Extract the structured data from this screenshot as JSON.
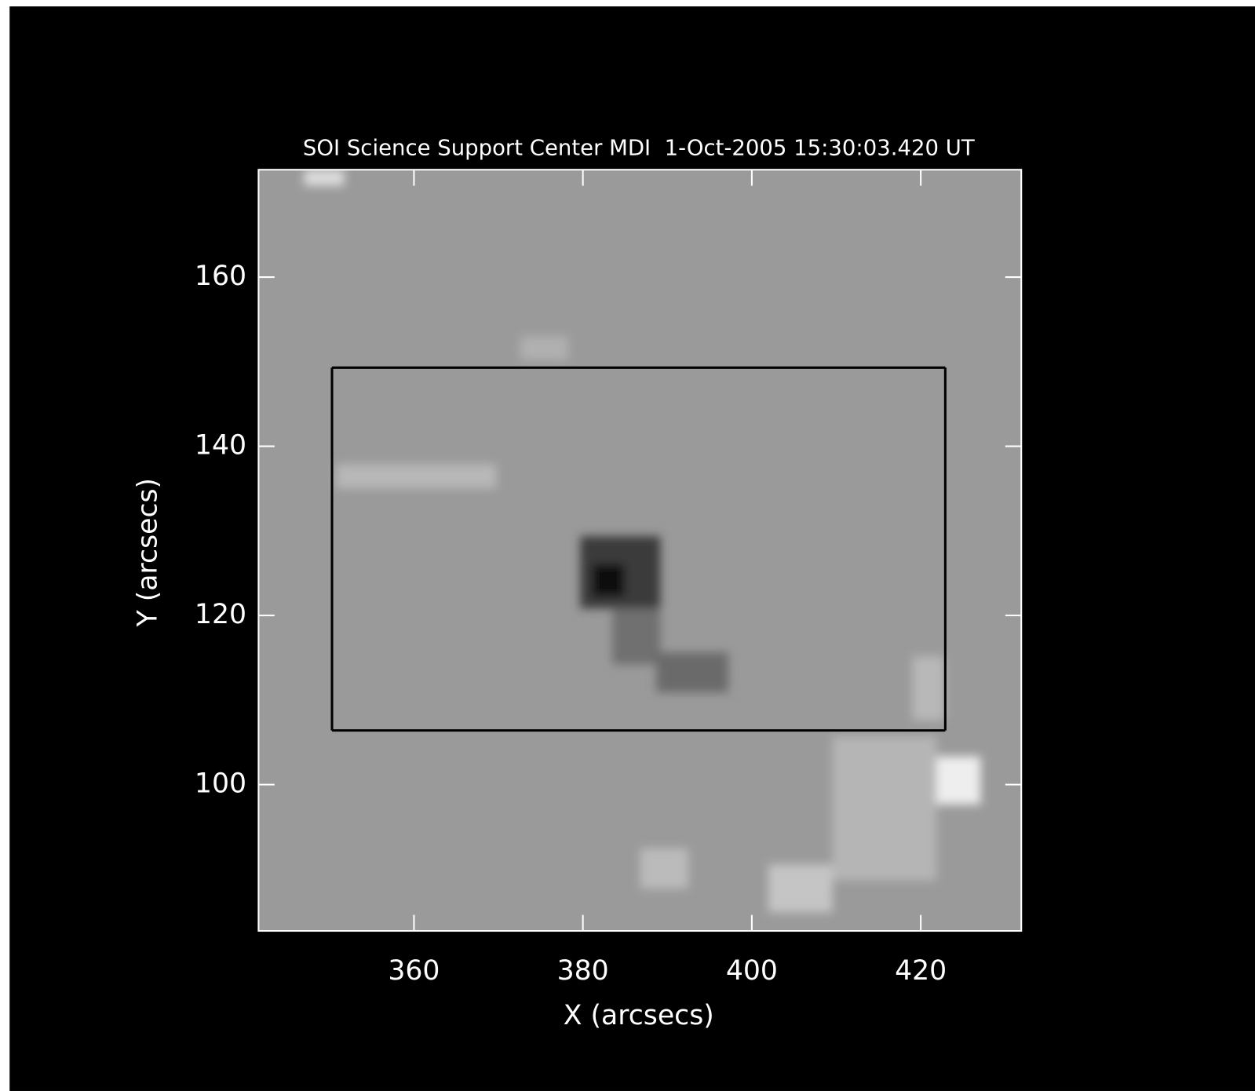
{
  "chart_data": {
    "type": "image",
    "title": "SOI Science Support Center MDI  1-Oct-2005 15:30:03.420 UT",
    "x_label": "X (arcsecs)",
    "y_label": "Y (arcsecs)",
    "xlim": [
      341.6,
      431.9
    ],
    "ylim": [
      82.7,
      172.7
    ],
    "xticks": [
      360,
      380,
      400,
      420
    ],
    "yticks": [
      100,
      120,
      140,
      160
    ],
    "box": {
      "x": [
        350.3,
        422.9
      ],
      "y": [
        106.4,
        149.3
      ],
      "color": "#000000"
    },
    "axis_color": "#ffffff"
  }
}
